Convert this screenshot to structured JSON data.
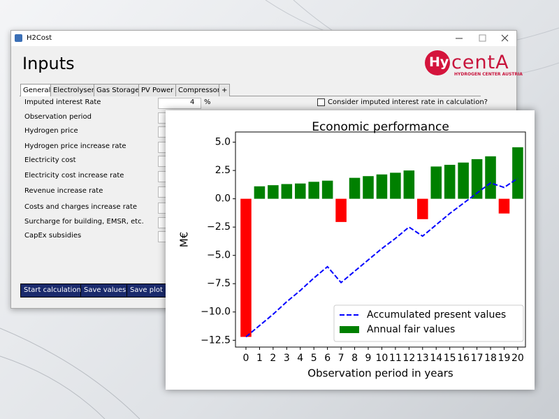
{
  "window": {
    "title": "H2Cost",
    "heading": "Inputs",
    "logo": {
      "hy": "Hy",
      "name": "centA",
      "tagline": "HYDROGEN CENTER AUSTRIA"
    },
    "tabs": [
      "General",
      "Electrolyser",
      "Gas Storage",
      "PV Power",
      "Compressor",
      "+"
    ],
    "fields": [
      "Imputed interest Rate",
      "Observation period",
      "Hydrogen price",
      "Hydrogen price increase rate",
      "Electricity cost",
      "Electricity cost increase rate",
      "Revenue increase rate",
      "Costs and charges increase rate",
      "Surcharge for building, EMSR, etc.",
      "CapEx subsidies"
    ],
    "interest_value": "4",
    "interest_unit": "%",
    "checkbox_label": "Consider imputed interest rate in calculation?",
    "buttons": [
      "Start calculation",
      "Save values",
      "Save plot"
    ]
  },
  "chart_data": {
    "type": "bar",
    "title": "Economic performance",
    "xlabel": "Observation period in years",
    "ylabel": "M€",
    "x": [
      0,
      1,
      2,
      3,
      4,
      5,
      6,
      7,
      8,
      9,
      10,
      11,
      12,
      13,
      14,
      15,
      16,
      17,
      18,
      19,
      20
    ],
    "xlim": [
      -0.77,
      20.57
    ],
    "xticks": [
      0,
      1,
      2,
      3,
      4,
      5,
      6,
      7,
      8,
      9,
      10,
      11,
      12,
      13,
      14,
      15,
      16,
      17,
      18,
      19,
      20
    ],
    "ylim": [
      -13.1,
      5.9
    ],
    "yticks": [
      {
        "value": -12.5,
        "label": "−12.5"
      },
      {
        "value": -10,
        "label": "−10.0"
      },
      {
        "value": -7.5,
        "label": "−7.5"
      },
      {
        "value": -5,
        "label": "−5.0"
      },
      {
        "value": -2.5,
        "label": "−2.5"
      },
      {
        "value": 0,
        "label": "0.0"
      },
      {
        "value": 2.5,
        "label": "2.5"
      },
      {
        "value": 5,
        "label": "5.0"
      }
    ],
    "legend": "lower right",
    "series": [
      {
        "name": "Accumulated present values",
        "type": "line",
        "color": "#0000ff",
        "linestyle": "dashed",
        "values": [
          -12.2,
          -11.2,
          -10.2,
          -9.1,
          -8.1,
          -7.0,
          -6.0,
          -7.4,
          -6.4,
          -5.4,
          -4.4,
          -3.5,
          -2.5,
          -3.3,
          -2.3,
          -1.3,
          -0.4,
          0.5,
          1.4,
          1.0,
          1.8
        ]
      },
      {
        "name": "Annual fair values",
        "type": "bar",
        "color": "#008000",
        "colors": [
          "#ff0000",
          "#008000",
          "#008000",
          "#008000",
          "#008000",
          "#008000",
          "#008000",
          "#ff0000",
          "#008000",
          "#008000",
          "#008000",
          "#008000",
          "#008000",
          "#ff0000",
          "#008000",
          "#008000",
          "#008000",
          "#008000",
          "#008000",
          "#ff0000",
          "#008000"
        ],
        "values": [
          -12.2,
          1.1,
          1.2,
          1.3,
          1.35,
          1.5,
          1.6,
          -2.05,
          1.85,
          2.0,
          2.15,
          2.3,
          2.5,
          -1.8,
          2.85,
          3.0,
          3.2,
          3.5,
          3.75,
          -1.3,
          4.55
        ]
      }
    ]
  }
}
